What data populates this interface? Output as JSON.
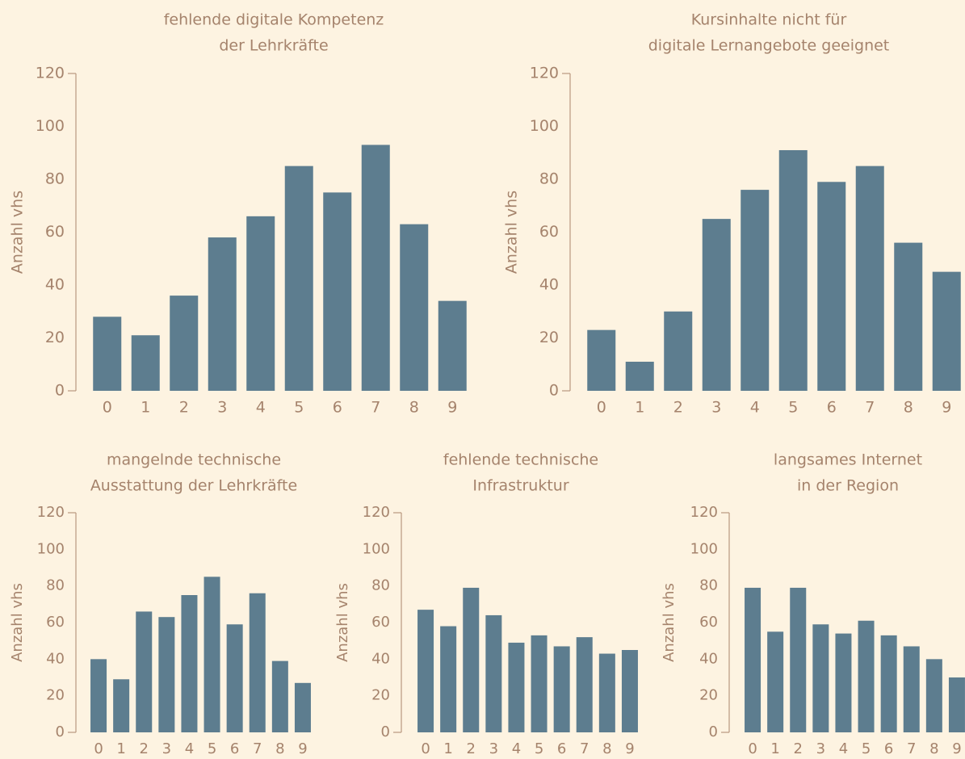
{
  "chart_data": [
    {
      "type": "bar",
      "title": [
        "fehlende digitale Kompetenz",
        "der Lehrkräfte"
      ],
      "y_label": "Anzahl vhs",
      "categories": [
        "0",
        "1",
        "2",
        "3",
        "4",
        "5",
        "6",
        "7",
        "8",
        "9"
      ],
      "values": [
        28,
        21,
        36,
        58,
        66,
        85,
        75,
        93,
        63,
        34
      ],
      "color": "#5d7d8f",
      "ylim": [
        0,
        120
      ],
      "yticks": [
        0,
        20,
        40,
        60,
        80,
        100,
        120
      ]
    },
    {
      "type": "bar",
      "title": [
        "Kursinhalte nicht für",
        "digitale Lernangebote geeignet"
      ],
      "y_label": "Anzahl vhs",
      "categories": [
        "0",
        "1",
        "2",
        "3",
        "4",
        "5",
        "6",
        "7",
        "8",
        "9"
      ],
      "values": [
        23,
        11,
        30,
        65,
        76,
        91,
        79,
        85,
        56,
        45
      ],
      "color": "#5d7d8f",
      "ylim": [
        0,
        120
      ],
      "yticks": [
        0,
        20,
        40,
        60,
        80,
        100,
        120
      ]
    },
    {
      "type": "bar",
      "title": [
        "mangelnde technische",
        "Ausstattung der Lehrkräfte"
      ],
      "y_label": "Anzahl vhs",
      "categories": [
        "0",
        "1",
        "2",
        "3",
        "4",
        "5",
        "6",
        "7",
        "8",
        "9"
      ],
      "values": [
        40,
        29,
        66,
        63,
        75,
        85,
        59,
        76,
        39,
        27
      ],
      "color": "#5d7d8f",
      "ylim": [
        0,
        120
      ],
      "yticks": [
        0,
        20,
        40,
        60,
        80,
        100,
        120
      ]
    },
    {
      "type": "bar",
      "title": [
        "fehlende technische",
        "Infrastruktur"
      ],
      "y_label": "Anzahl vhs",
      "categories": [
        "0",
        "1",
        "2",
        "3",
        "4",
        "5",
        "6",
        "7",
        "8",
        "9"
      ],
      "values": [
        67,
        58,
        79,
        64,
        49,
        53,
        47,
        52,
        43,
        45
      ],
      "color": "#5d7d8f",
      "ylim": [
        0,
        120
      ],
      "yticks": [
        0,
        20,
        40,
        60,
        80,
        100,
        120
      ]
    },
    {
      "type": "bar",
      "title": [
        "langsames Internet",
        "in der Region"
      ],
      "y_label": "Anzahl vhs",
      "categories": [
        "0",
        "1",
        "2",
        "3",
        "4",
        "5",
        "6",
        "7",
        "8",
        "9"
      ],
      "values": [
        79,
        55,
        79,
        59,
        54,
        61,
        53,
        47,
        40,
        30
      ],
      "color": "#5d7d8f",
      "ylim": [
        0,
        120
      ],
      "yticks": [
        0,
        20,
        40,
        60,
        80,
        100,
        120
      ]
    }
  ]
}
